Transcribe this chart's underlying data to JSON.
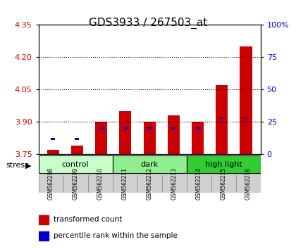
{
  "title": "GDS3933 / 267503_at",
  "samples": [
    "GSM562208",
    "GSM562209",
    "GSM562210",
    "GSM562211",
    "GSM562212",
    "GSM562213",
    "GSM562214",
    "GSM562215",
    "GSM562216"
  ],
  "transformed_counts": [
    3.77,
    3.79,
    3.9,
    3.95,
    3.9,
    3.93,
    3.9,
    4.07,
    4.25
  ],
  "percentile_ranks": [
    12,
    12,
    20,
    20,
    20,
    20,
    20,
    28,
    28
  ],
  "ylim_left": [
    3.75,
    4.35
  ],
  "ylim_right": [
    0,
    100
  ],
  "yticks_left": [
    3.75,
    3.9,
    4.05,
    4.2,
    4.35
  ],
  "yticks_right": [
    0,
    25,
    50,
    75,
    100
  ],
  "groups": [
    {
      "label": "control",
      "start": 0,
      "end": 3,
      "color": "#d4edda"
    },
    {
      "label": "dark",
      "start": 3,
      "end": 6,
      "color": "#90ee90"
    },
    {
      "label": "high light",
      "start": 6,
      "end": 9,
      "color": "#32cd32"
    }
  ],
  "bar_color": "#cc0000",
  "percentile_color": "#0000cc",
  "bar_width": 0.5,
  "baseline": 3.75,
  "background_color": "#ffffff",
  "plot_bg_color": "#ffffff",
  "tick_label_color_left": "#cc0000",
  "tick_label_color_right": "#0000cc",
  "grid_color": "#000000",
  "stress_label": "stress",
  "group_bg_color": "#c8c8c8",
  "legend_items": [
    "transformed count",
    "percentile rank within the sample"
  ]
}
